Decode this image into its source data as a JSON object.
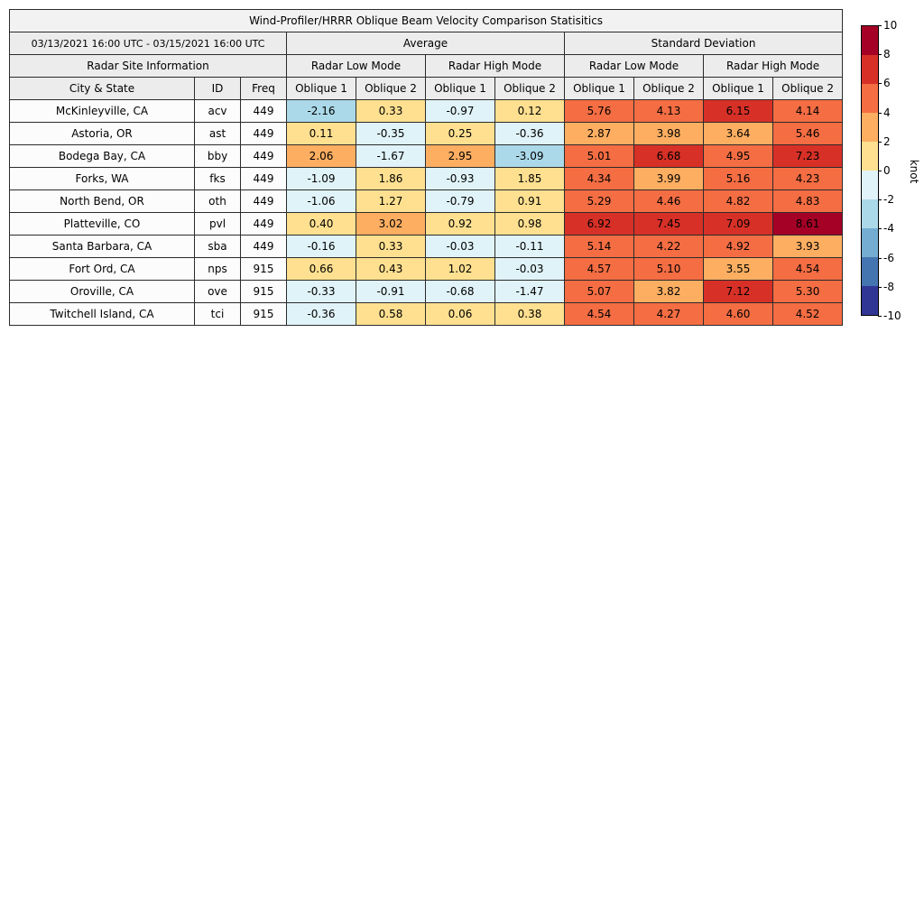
{
  "title": "Wind-Profiler/HRRR Oblique Beam Velocity Comparison Statisitics",
  "date_range": "03/13/2021 16:00 UTC - 03/15/2021 16:00 UTC",
  "group_headers": {
    "average": "Average",
    "std": "Standard Deviation",
    "site_info": "Radar Site Information",
    "low_mode": "Radar Low Mode",
    "high_mode": "Radar High Mode"
  },
  "column_headers": [
    "City & State",
    "ID",
    "Freq",
    "Oblique 1",
    "Oblique 2",
    "Oblique 1",
    "Oblique 2",
    "Oblique 1",
    "Oblique 2",
    "Oblique 1",
    "Oblique 2"
  ],
  "chart_data": {
    "type": "heatmap",
    "title": "Wind-Profiler/HRRR Oblique Beam Velocity Comparison Statisitics",
    "value_columns": [
      "Average Radar Low Mode Oblique 1",
      "Average Radar Low Mode Oblique 2",
      "Average Radar High Mode Oblique 1",
      "Average Radar High Mode Oblique 2",
      "Std Dev Radar Low Mode Oblique 1",
      "Std Dev Radar Low Mode Oblique 2",
      "Std Dev Radar High Mode Oblique 1",
      "Std Dev Radar High Mode Oblique 2"
    ],
    "rows": [
      {
        "city": "McKinleyville, CA",
        "id": "acv",
        "freq": "449",
        "values": [
          -2.16,
          0.33,
          -0.97,
          0.12,
          5.76,
          4.13,
          6.15,
          4.14
        ]
      },
      {
        "city": "Astoria, OR",
        "id": "ast",
        "freq": "449",
        "values": [
          0.11,
          -0.35,
          0.25,
          -0.36,
          2.87,
          3.98,
          3.64,
          5.46
        ]
      },
      {
        "city": "Bodega Bay, CA",
        "id": "bby",
        "freq": "449",
        "values": [
          2.06,
          -1.67,
          2.95,
          -3.09,
          5.01,
          6.68,
          4.95,
          7.23
        ]
      },
      {
        "city": "Forks, WA",
        "id": "fks",
        "freq": "449",
        "values": [
          -1.09,
          1.86,
          -0.93,
          1.85,
          4.34,
          3.99,
          5.16,
          4.23
        ]
      },
      {
        "city": "North Bend, OR",
        "id": "oth",
        "freq": "449",
        "values": [
          -1.06,
          1.27,
          -0.79,
          0.91,
          5.29,
          4.46,
          4.82,
          4.83
        ]
      },
      {
        "city": "Platteville, CO",
        "id": "pvl",
        "freq": "449",
        "values": [
          0.4,
          3.02,
          0.92,
          0.98,
          6.92,
          7.45,
          7.09,
          8.61
        ]
      },
      {
        "city": "Santa Barbara, CA",
        "id": "sba",
        "freq": "449",
        "values": [
          -0.16,
          0.33,
          -0.03,
          -0.11,
          5.14,
          4.22,
          4.92,
          3.93
        ]
      },
      {
        "city": "Fort Ord, CA",
        "id": "nps",
        "freq": "915",
        "values": [
          0.66,
          0.43,
          1.02,
          -0.03,
          4.57,
          5.1,
          3.55,
          4.54
        ]
      },
      {
        "city": "Oroville, CA",
        "id": "ove",
        "freq": "915",
        "values": [
          -0.33,
          -0.91,
          -0.68,
          -1.47,
          5.07,
          3.82,
          7.12,
          5.3
        ]
      },
      {
        "city": "Twitchell Island, CA",
        "id": "tci",
        "freq": "915",
        "values": [
          -0.36,
          0.58,
          0.06,
          0.38,
          4.54,
          4.27,
          4.6,
          4.52
        ]
      }
    ],
    "colorbar": {
      "label": "knot",
      "min": -10,
      "max": 10,
      "ticks": [
        10,
        8,
        6,
        4,
        2,
        0,
        -2,
        -4,
        -6,
        -8,
        -10
      ]
    },
    "colormap_stops": [
      "#313695",
      "#4575b1",
      "#74add1",
      "#abd9e9",
      "#e0f3f8",
      "#fee090",
      "#fdae61",
      "#f46d43",
      "#d73027",
      "#a50026"
    ]
  }
}
